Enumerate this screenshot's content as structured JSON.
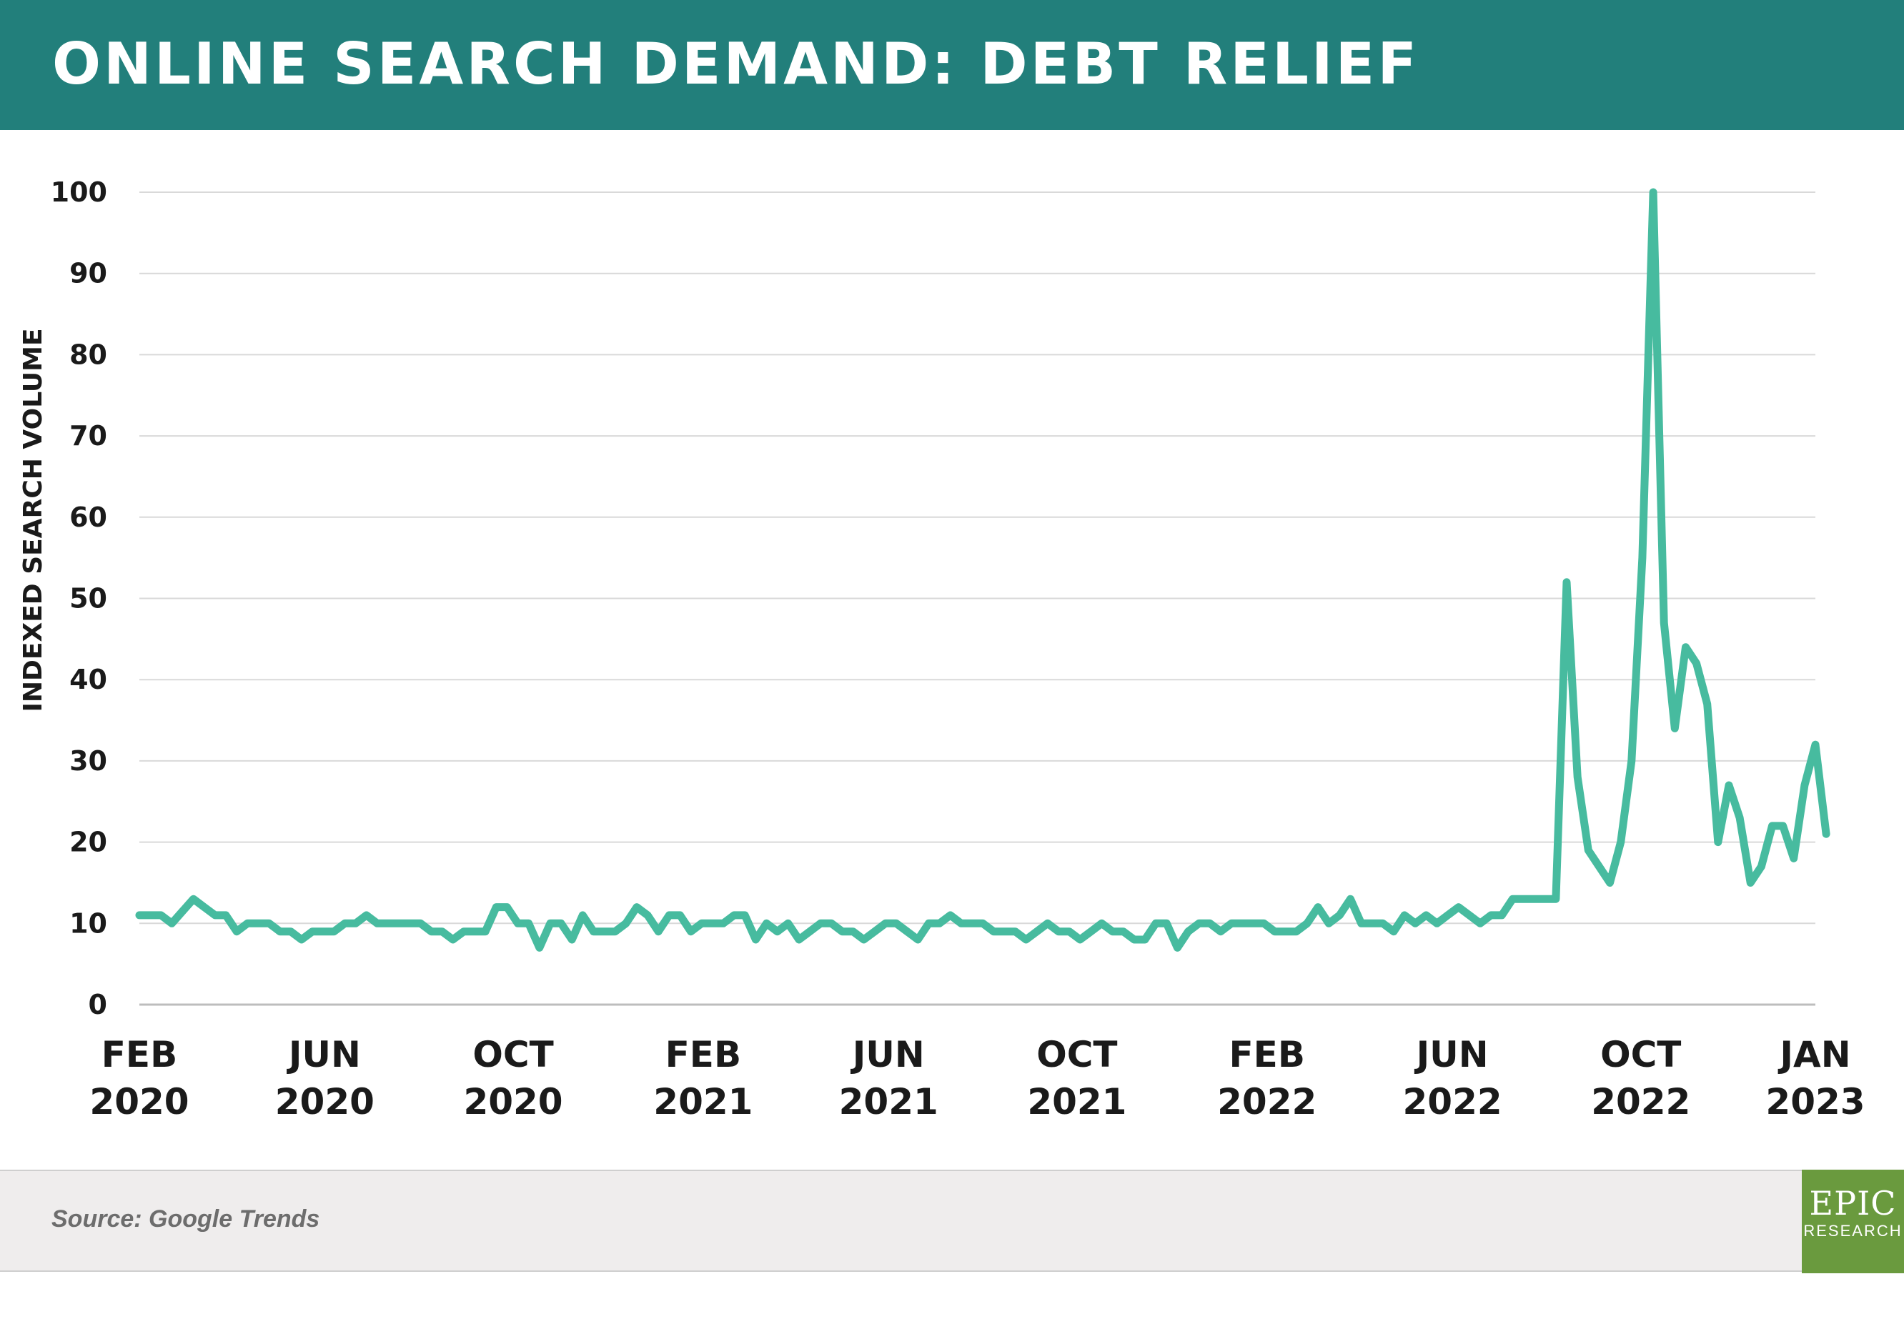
{
  "title": "ONLINE SEARCH DEMAND: DEBT RELIEF",
  "source": "Source: Google Trends",
  "logo": {
    "main": "EPIC",
    "sub": "RESEARCH"
  },
  "colors": {
    "header": "#227f7b",
    "line": "#47bb9f",
    "grid": "#d9d9d9",
    "footer": "#efeded",
    "logo": "#6a9a3e"
  },
  "chart_data": {
    "type": "line",
    "title": "ONLINE SEARCH DEMAND: DEBT RELIEF",
    "xlabel": "",
    "ylabel": "INDEXED SEARCH VOLUME",
    "ylim": [
      0,
      100
    ],
    "yticks": [
      0,
      10,
      20,
      30,
      40,
      50,
      60,
      70,
      80,
      90,
      100
    ],
    "xlim": [
      "2020-02-02",
      "2023-01-22"
    ],
    "xticks": [
      {
        "date": "2020-02-02",
        "line1": "FEB",
        "line2": "2020"
      },
      {
        "date": "2020-06-01",
        "line1": "JUN",
        "line2": "2020"
      },
      {
        "date": "2020-10-01",
        "line1": "OCT",
        "line2": "2020"
      },
      {
        "date": "2021-02-01",
        "line1": "FEB",
        "line2": "2021"
      },
      {
        "date": "2021-06-01",
        "line1": "JUN",
        "line2": "2021"
      },
      {
        "date": "2021-10-01",
        "line1": "OCT",
        "line2": "2021"
      },
      {
        "date": "2022-02-01",
        "line1": "FEB",
        "line2": "2022"
      },
      {
        "date": "2022-06-01",
        "line1": "JUN",
        "line2": "2022"
      },
      {
        "date": "2022-10-01",
        "line1": "OCT",
        "line2": "2022"
      },
      {
        "date": "2023-01-22",
        "line1": "JAN",
        "line2": "2023"
      }
    ],
    "grid": true,
    "series": [
      {
        "start": "2020-02-02",
        "frequency": "weekly",
        "values": [
          11,
          11,
          11,
          10,
          11.5,
          13,
          12,
          11,
          11,
          9,
          10,
          10,
          10,
          9,
          9,
          8,
          9,
          9,
          9,
          10,
          10,
          11,
          10,
          10,
          10,
          10,
          10,
          9,
          9,
          8,
          9,
          9,
          9,
          12,
          12,
          10,
          10,
          7,
          10,
          10,
          8,
          11,
          9,
          9,
          9,
          10,
          12,
          11,
          9,
          11,
          11,
          9,
          10,
          10,
          10,
          11,
          11,
          8,
          10,
          9,
          10,
          8,
          9,
          10,
          10,
          9,
          9,
          8,
          9,
          10,
          10,
          9,
          8,
          10,
          10,
          11,
          10,
          10,
          10,
          9,
          9,
          9,
          8,
          9,
          10,
          9,
          9,
          8,
          9,
          10,
          9,
          9,
          8,
          8,
          10,
          10,
          7,
          9,
          10,
          10,
          9,
          10,
          10,
          10,
          10,
          9,
          9,
          9,
          10,
          12,
          10,
          11,
          13,
          10,
          10,
          10,
          9,
          11,
          10,
          11,
          10,
          11,
          12,
          11,
          10,
          11,
          11,
          13,
          13,
          13,
          13,
          13,
          52,
          28,
          19,
          17,
          15,
          20,
          30,
          55,
          100,
          47,
          34,
          44,
          42,
          37,
          20,
          27,
          23,
          15,
          17,
          22,
          22,
          18,
          27,
          32,
          21
        ]
      }
    ]
  }
}
